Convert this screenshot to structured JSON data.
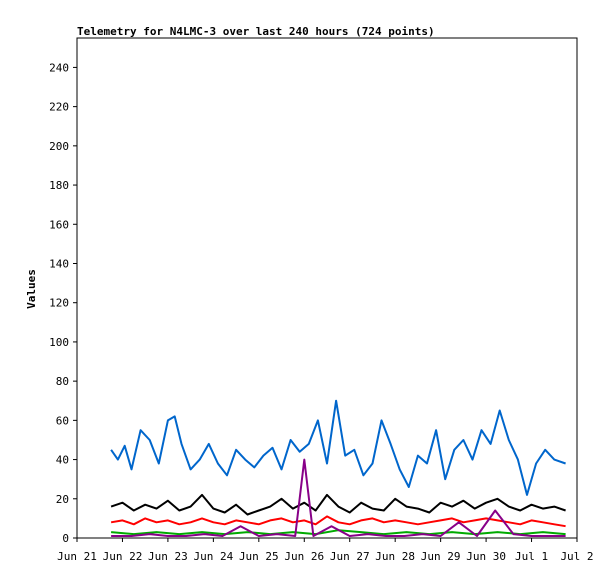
{
  "chart_data": {
    "type": "line",
    "title": "Telemetry for N4LMC-3 over last 240 hours (724 points)",
    "xlabel": "",
    "ylabel": "Values",
    "x_ticks": [
      "Jun 21",
      "Jun 22",
      "Jun 23",
      "Jun 24",
      "Jun 25",
      "Jun 26",
      "Jun 27",
      "Jun 28",
      "Jun 29",
      "Jun 30",
      "Jul 1",
      "Jul 2"
    ],
    "xlim": [
      0,
      11
    ],
    "ylim": [
      0,
      255
    ],
    "y_ticks": [
      0,
      20,
      40,
      60,
      80,
      100,
      120,
      140,
      160,
      180,
      200,
      220,
      240
    ],
    "grid": false,
    "series": [
      {
        "color": "#0066cc",
        "x": [
          0.75,
          0.9,
          1.05,
          1.2,
          1.4,
          1.6,
          1.8,
          2.0,
          2.15,
          2.3,
          2.5,
          2.7,
          2.9,
          3.1,
          3.3,
          3.5,
          3.7,
          3.9,
          4.1,
          4.3,
          4.5,
          4.7,
          4.9,
          5.1,
          5.3,
          5.5,
          5.7,
          5.9,
          6.1,
          6.3,
          6.5,
          6.7,
          6.9,
          7.1,
          7.3,
          7.5,
          7.7,
          7.9,
          8.1,
          8.3,
          8.5,
          8.7,
          8.9,
          9.1,
          9.3,
          9.5,
          9.7,
          9.9,
          10.1,
          10.3,
          10.5,
          10.75
        ],
        "values": [
          45,
          40,
          47,
          35,
          55,
          50,
          38,
          60,
          62,
          48,
          35,
          40,
          48,
          38,
          32,
          45,
          40,
          36,
          42,
          46,
          35,
          50,
          44,
          48,
          60,
          38,
          70,
          42,
          45,
          32,
          38,
          60,
          48,
          35,
          26,
          42,
          38,
          55,
          30,
          45,
          50,
          40,
          55,
          48,
          65,
          50,
          40,
          22,
          38,
          45,
          40,
          38
        ]
      },
      {
        "color": "#000000",
        "x": [
          0.75,
          1.0,
          1.25,
          1.5,
          1.75,
          2.0,
          2.25,
          2.5,
          2.75,
          3.0,
          3.25,
          3.5,
          3.75,
          4.0,
          4.25,
          4.5,
          4.75,
          5.0,
          5.25,
          5.5,
          5.75,
          6.0,
          6.25,
          6.5,
          6.75,
          7.0,
          7.25,
          7.5,
          7.75,
          8.0,
          8.25,
          8.5,
          8.75,
          9.0,
          9.25,
          9.5,
          9.75,
          10.0,
          10.25,
          10.5,
          10.75
        ],
        "values": [
          16,
          18,
          14,
          17,
          15,
          19,
          14,
          16,
          22,
          15,
          13,
          17,
          12,
          14,
          16,
          20,
          15,
          18,
          14,
          22,
          16,
          13,
          18,
          15,
          14,
          20,
          16,
          15,
          13,
          18,
          16,
          19,
          15,
          18,
          20,
          16,
          14,
          17,
          15,
          16,
          14
        ]
      },
      {
        "color": "#ff0000",
        "x": [
          0.75,
          1.0,
          1.25,
          1.5,
          1.75,
          2.0,
          2.25,
          2.5,
          2.75,
          3.0,
          3.25,
          3.5,
          3.75,
          4.0,
          4.25,
          4.5,
          4.75,
          5.0,
          5.25,
          5.5,
          5.75,
          6.0,
          6.25,
          6.5,
          6.75,
          7.0,
          7.25,
          7.5,
          7.75,
          8.0,
          8.25,
          8.5,
          8.75,
          9.0,
          9.25,
          9.5,
          9.75,
          10.0,
          10.25,
          10.5,
          10.75
        ],
        "values": [
          8,
          9,
          7,
          10,
          8,
          9,
          7,
          8,
          10,
          8,
          7,
          9,
          8,
          7,
          9,
          10,
          8,
          9,
          7,
          11,
          8,
          7,
          9,
          10,
          8,
          9,
          8,
          7,
          8,
          9,
          10,
          8,
          9,
          10,
          9,
          8,
          7,
          9,
          8,
          7,
          6
        ]
      },
      {
        "color": "#00aa00",
        "x": [
          0.75,
          1.25,
          1.75,
          2.25,
          2.75,
          3.25,
          3.75,
          4.25,
          4.75,
          5.25,
          5.75,
          6.25,
          6.75,
          7.25,
          7.75,
          8.25,
          8.75,
          9.25,
          9.75,
          10.25,
          10.75
        ],
        "values": [
          3,
          2,
          3,
          2,
          3,
          2,
          3,
          2,
          3,
          2,
          4,
          3,
          2,
          3,
          2,
          3,
          2,
          3,
          2,
          3,
          2
        ]
      },
      {
        "color": "#880088",
        "x": [
          0.75,
          1.2,
          1.6,
          2.0,
          2.4,
          2.8,
          3.2,
          3.6,
          4.0,
          4.4,
          4.8,
          5.0,
          5.2,
          5.6,
          6.0,
          6.4,
          6.8,
          7.2,
          7.6,
          8.0,
          8.4,
          8.8,
          9.2,
          9.6,
          10.0,
          10.4,
          10.75
        ],
        "values": [
          1,
          1,
          2,
          1,
          1,
          2,
          1,
          6,
          1,
          2,
          1,
          40,
          1,
          6,
          1,
          2,
          1,
          1,
          2,
          1,
          8,
          1,
          14,
          2,
          1,
          1,
          1
        ]
      }
    ]
  }
}
